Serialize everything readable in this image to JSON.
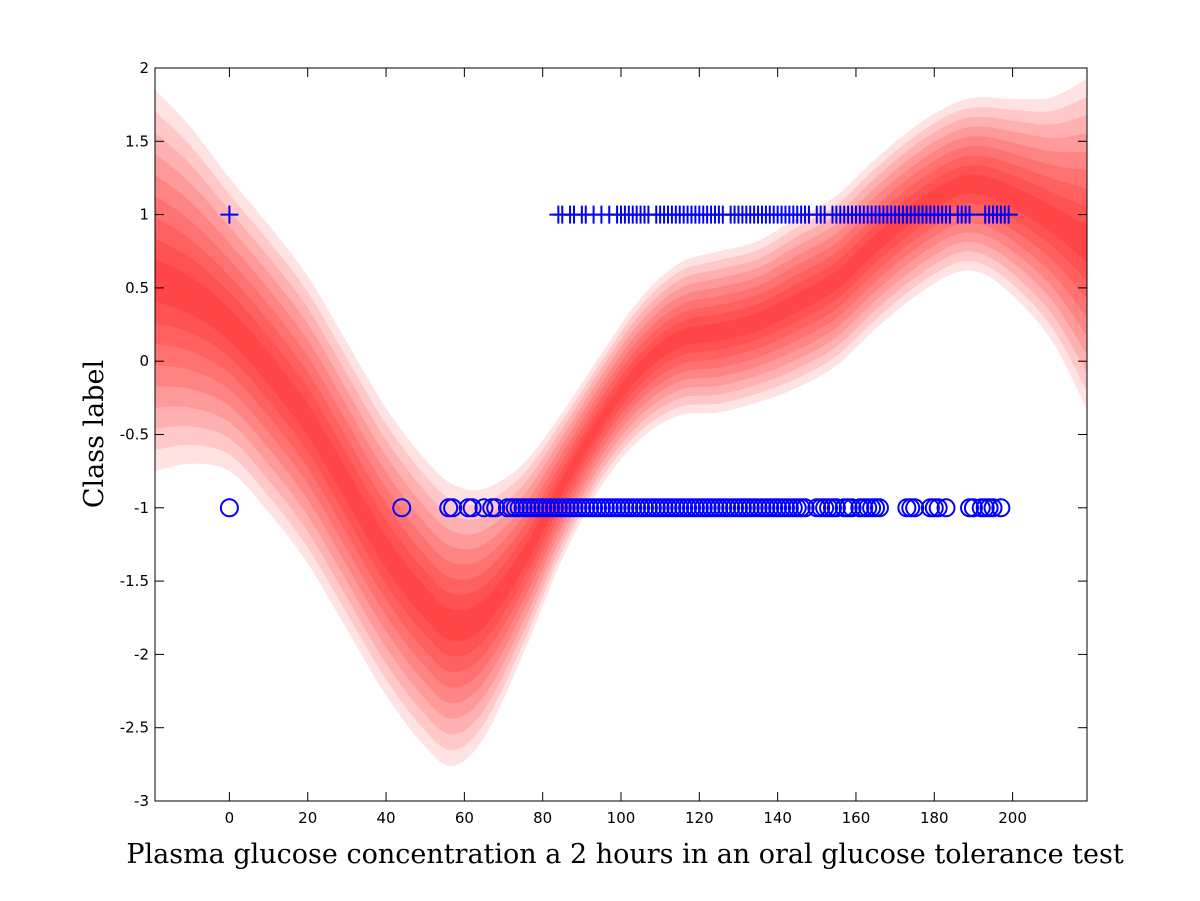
{
  "chart_data": {
    "type": "scatter",
    "xlabel": "Plasma glucose concentration a 2 hours in an oral glucose tolerance test",
    "ylabel": "Class label",
    "xlim": [
      -19,
      219
    ],
    "ylim": [
      -3,
      2
    ],
    "xticks": [
      0,
      20,
      40,
      60,
      80,
      100,
      120,
      140,
      160,
      180,
      200
    ],
    "yticks": [
      -3,
      -2.5,
      -2,
      -1.5,
      -1,
      -0.5,
      0,
      0.5,
      1,
      1.5,
      2
    ],
    "xtick_labels": [
      "0",
      "20",
      "40",
      "60",
      "80",
      "100",
      "120",
      "140",
      "160",
      "180",
      "200"
    ],
    "ytick_labels": [
      "-3",
      "-2.5",
      "-2",
      "-1.5",
      "-1",
      "-0.5",
      "0",
      "0.5",
      "1",
      "1.5",
      "2"
    ],
    "grid": false,
    "colors": {
      "band": "#ff0000",
      "markers": "#0000ff"
    },
    "predictive_band": {
      "description_kind": "mean ± error bands",
      "x": [
        -19,
        -10,
        0,
        10,
        20,
        30,
        40,
        50,
        57,
        65,
        75,
        85,
        95,
        105,
        115,
        125,
        135,
        145,
        155,
        165,
        175,
        185,
        192,
        200,
        210,
        219
      ],
      "mean": [
        0.55,
        0.45,
        0.25,
        -0.05,
        -0.4,
        -0.85,
        -1.3,
        -1.65,
        -1.8,
        -1.72,
        -1.35,
        -0.85,
        -0.4,
        -0.05,
        0.15,
        0.2,
        0.27,
        0.4,
        0.55,
        0.8,
        1.02,
        1.18,
        1.2,
        1.12,
        0.97,
        0.8
      ],
      "half_width": [
        1.3,
        1.15,
        1.0,
        0.98,
        0.98,
        0.98,
        0.98,
        0.98,
        0.96,
        0.85,
        0.65,
        0.5,
        0.45,
        0.48,
        0.52,
        0.55,
        0.55,
        0.58,
        0.58,
        0.58,
        0.58,
        0.58,
        0.6,
        0.67,
        0.83,
        1.13
      ],
      "levels": 9
    },
    "series": [
      {
        "marker": "plus",
        "y": 1,
        "x": [
          0,
          84,
          85,
          87,
          88,
          90,
          91,
          93,
          95,
          97,
          99,
          100,
          101,
          102,
          103,
          104,
          105,
          106,
          107,
          109,
          110,
          111,
          112,
          113,
          114,
          115,
          116,
          117,
          118,
          119,
          120,
          121,
          122,
          123,
          124,
          125,
          126,
          128,
          129,
          130,
          131,
          132,
          133,
          134,
          135,
          136,
          137,
          138,
          139,
          140,
          141,
          142,
          143,
          144,
          145,
          146,
          147,
          148,
          150,
          151,
          152,
          154,
          155,
          156,
          157,
          158,
          159,
          160,
          161,
          162,
          163,
          164,
          165,
          166,
          167,
          168,
          169,
          170,
          171,
          172,
          173,
          174,
          175,
          176,
          177,
          178,
          179,
          180,
          181,
          182,
          183,
          184,
          186,
          187,
          188,
          189,
          193,
          194,
          195,
          196,
          197,
          198,
          199
        ]
      },
      {
        "marker": "circle",
        "y": -1,
        "x": [
          0,
          44,
          56,
          57,
          61,
          62,
          65,
          67,
          68,
          71,
          72,
          73,
          74,
          75,
          76,
          77,
          78,
          79,
          80,
          81,
          82,
          83,
          84,
          85,
          86,
          87,
          88,
          89,
          90,
          91,
          92,
          93,
          94,
          95,
          96,
          97,
          98,
          99,
          100,
          101,
          102,
          103,
          104,
          105,
          106,
          107,
          108,
          109,
          110,
          111,
          112,
          113,
          114,
          115,
          116,
          117,
          118,
          119,
          120,
          121,
          122,
          123,
          124,
          125,
          126,
          127,
          128,
          129,
          130,
          131,
          132,
          133,
          134,
          135,
          136,
          137,
          138,
          139,
          140,
          141,
          142,
          143,
          144,
          145,
          146,
          147,
          150,
          151,
          152,
          153,
          154,
          155,
          157,
          158,
          159,
          161,
          162,
          163,
          164,
          165,
          166,
          173,
          174,
          175,
          179,
          180,
          181,
          183,
          189,
          190,
          192,
          193,
          194,
          195,
          197
        ]
      }
    ]
  }
}
